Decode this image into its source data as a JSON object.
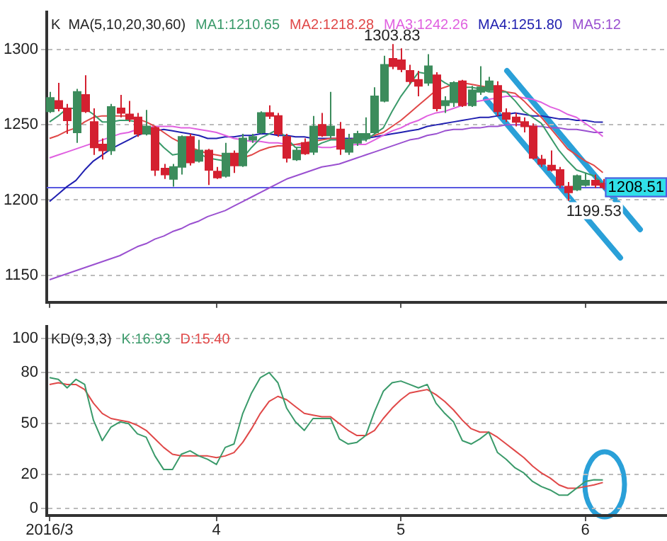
{
  "chart_data": [
    {
      "type": "candlestick",
      "legend_title": "K  MA(5,10,20,30,60)",
      "legend": "top",
      "tick_labels": "y",
      "grid": "y",
      "categories": [
        "2016/3",
        null,
        null,
        null,
        null,
        null,
        null,
        null,
        null,
        null,
        null,
        null,
        null,
        null,
        null,
        null,
        null,
        null,
        null,
        "4",
        null,
        null,
        null,
        null,
        null,
        null,
        null,
        null,
        null,
        null,
        null,
        null,
        null,
        null,
        null,
        null,
        null,
        null,
        null,
        null,
        "5",
        null,
        null,
        null,
        null,
        null,
        null,
        null,
        null,
        null,
        null,
        null,
        null,
        null,
        null,
        null,
        null,
        null,
        null,
        null,
        null,
        "6",
        null,
        null
      ],
      "ohlc": [
        [
          1259,
          1272,
          1258,
          1268
        ],
        [
          1266,
          1278,
          1259,
          1261
        ],
        [
          1261,
          1264,
          1244,
          1253
        ],
        [
          1245,
          1274,
          1238,
          1272
        ],
        [
          1270,
          1283,
          1258,
          1259
        ],
        [
          1252,
          1261,
          1230,
          1235
        ],
        [
          1237,
          1241,
          1227,
          1233
        ],
        [
          1233,
          1264,
          1230,
          1262
        ],
        [
          1261,
          1270,
          1255,
          1258
        ],
        [
          1257,
          1266,
          1252,
          1254
        ],
        [
          1255,
          1258,
          1242,
          1244
        ],
        [
          1244,
          1260,
          1243,
          1249
        ],
        [
          1248,
          1249,
          1216,
          1220
        ],
        [
          1221,
          1224,
          1214,
          1217
        ],
        [
          1214,
          1224,
          1209,
          1222
        ],
        [
          1222,
          1243,
          1217,
          1242
        ],
        [
          1242,
          1244,
          1223,
          1225
        ],
        [
          1226,
          1240,
          1225,
          1233
        ],
        [
          1233,
          1234,
          1210,
          1220
        ],
        [
          1219,
          1222,
          1214,
          1215
        ],
        [
          1216,
          1238,
          1215,
          1231
        ],
        [
          1231,
          1233,
          1218,
          1223
        ],
        [
          1223,
          1244,
          1222,
          1241
        ],
        [
          1240,
          1244,
          1238,
          1242
        ],
        [
          1245,
          1259,
          1244,
          1258
        ],
        [
          1258,
          1263,
          1254,
          1256
        ],
        [
          1256,
          1258,
          1242,
          1244
        ],
        [
          1242,
          1244,
          1225,
          1228
        ],
        [
          1227,
          1235,
          1226,
          1233
        ],
        [
          1238,
          1241,
          1230,
          1231
        ],
        [
          1232,
          1256,
          1230,
          1249
        ],
        [
          1250,
          1258,
          1242,
          1243
        ],
        [
          1243,
          1272,
          1241,
          1249
        ],
        [
          1247,
          1252,
          1230,
          1234
        ],
        [
          1232,
          1244,
          1230,
          1240
        ],
        [
          1238,
          1246,
          1236,
          1244
        ],
        [
          1241,
          1255,
          1239,
          1244
        ],
        [
          1245,
          1275,
          1244,
          1269
        ],
        [
          1266,
          1296,
          1265,
          1290
        ],
        [
          1294,
          1303.83,
          1287,
          1289
        ],
        [
          1293,
          1301,
          1285,
          1287
        ],
        [
          1286,
          1290,
          1277,
          1279
        ],
        [
          1280,
          1286,
          1269,
          1276
        ],
        [
          1278,
          1297,
          1276,
          1289
        ],
        [
          1283,
          1285,
          1259,
          1261
        ],
        [
          1263,
          1269,
          1258,
          1266
        ],
        [
          1265,
          1279,
          1262,
          1278
        ],
        [
          1279,
          1280,
          1262,
          1263
        ],
        [
          1263,
          1276,
          1262,
          1273
        ],
        [
          1272,
          1289,
          1270,
          1275
        ],
        [
          1273,
          1282,
          1272,
          1279
        ],
        [
          1276,
          1279,
          1256,
          1259
        ],
        [
          1258,
          1261,
          1252,
          1254
        ],
        [
          1255,
          1258,
          1249,
          1252
        ],
        [
          1252,
          1255,
          1245,
          1249
        ],
        [
          1249,
          1251,
          1227,
          1228
        ],
        [
          1227,
          1230,
          1222,
          1224
        ],
        [
          1223,
          1233,
          1219,
          1220
        ],
        [
          1220,
          1222,
          1208,
          1210
        ],
        [
          1209,
          1212,
          1199.53,
          1205
        ],
        [
          1207,
          1217,
          1206,
          1216
        ],
        [
          1210,
          1218,
          1209,
          1213
        ],
        [
          1213,
          1217,
          1208,
          1210
        ],
        [
          1211,
          1214,
          1207,
          1208.51
        ]
      ],
      "colors": [
        "#3c8c5c",
        "#d42030",
        "#d42030",
        "#3c8c5c",
        "#d42030",
        "#d42030",
        "#d42030",
        "#3c8c5c",
        "#d42030",
        "#d42030",
        "#d42030",
        "#3c8c5c",
        "#d42030",
        "#d42030",
        "#3c8c5c",
        "#3c8c5c",
        "#d42030",
        "#3c8c5c",
        "#d42030",
        "#d42030",
        "#3c8c5c",
        "#d42030",
        "#3c8c5c",
        "#3c8c5c",
        "#3c8c5c",
        "#d42030",
        "#d42030",
        "#d42030",
        "#3c8c5c",
        "#d42030",
        "#3c8c5c",
        "#d42030",
        "#3c8c5c",
        "#d42030",
        "#3c8c5c",
        "#3c8c5c",
        "#3c8c5c",
        "#3c8c5c",
        "#3c8c5c",
        "#d42030",
        "#d42030",
        "#d42030",
        "#d42030",
        "#3c8c5c",
        "#d42030",
        "#3c8c5c",
        "#3c8c5c",
        "#d42030",
        "#3c8c5c",
        "#3c8c5c",
        "#3c8c5c",
        "#d42030",
        "#d42030",
        "#d42030",
        "#d42030",
        "#d42030",
        "#d42030",
        "#d42030",
        "#d42030",
        "#d42030",
        "#3c8c5c",
        "#3c8c5c",
        "#d42030",
        "#d42030"
      ],
      "series": [
        {
          "name": "MA1:1210.65",
          "type": "line",
          "color": "#3a9a6a",
          "values": [
            1252,
            1256,
            1261,
            1261,
            1261,
            1257,
            1252,
            1252,
            1253,
            1253,
            1252,
            1247,
            1241,
            1235,
            1230,
            1231,
            1233,
            1231,
            1228,
            1227,
            1226,
            1227,
            1228,
            1235,
            1241,
            1244,
            1247,
            1241,
            1235,
            1235,
            1235,
            1238,
            1240,
            1240,
            1240,
            1240,
            1240,
            1244,
            1248,
            1259,
            1269,
            1277,
            1285,
            1284,
            1282,
            1278,
            1275,
            1275,
            1275,
            1274,
            1272,
            1272,
            1272,
            1266,
            1259,
            1255,
            1251,
            1242,
            1233,
            1226,
            1220,
            1218,
            1216,
            1210.65
          ]
        },
        {
          "name": "MA2:1218.28",
          "type": "line",
          "color": "#e04848",
          "values": [
            1241,
            1243,
            1246,
            1248,
            1252,
            1255,
            1256,
            1256,
            1256,
            1256,
            1254,
            1252,
            1249,
            1245,
            1241,
            1238,
            1235,
            1233,
            1231,
            1230,
            1229,
            1228,
            1228,
            1230,
            1233,
            1235,
            1236,
            1236,
            1237,
            1238,
            1239,
            1240,
            1241,
            1241,
            1240,
            null,
            null,
            1243,
            1245,
            1249,
            1253,
            1258,
            1263,
            1268,
            1273,
            1275,
            1277,
            1278,
            1277,
            1276,
            1275,
            1274,
            1272,
            1271,
            1266,
            1260,
            1255,
            1248,
            1241,
            1234,
            1230,
            1226,
            1223,
            1218.28
          ]
        },
        {
          "name": "MA3:1242.26",
          "type": "line",
          "color": "#e060e0",
          "values": [
            1228,
            1230,
            1232,
            1234,
            1236,
            1238,
            1240,
            1242,
            1244,
            1245,
            1247,
            1248,
            1249,
            1249,
            1249,
            1248,
            1248,
            1247,
            1246,
            1245,
            1243,
            1241,
            1240,
            1239,
            1239,
            1238,
            1238,
            1237,
            1237,
            1236,
            1236,
            1235,
            1235,
            1236,
            null,
            1237,
            1237,
            1240,
            1243,
            1246,
            1248,
            1251,
            1253,
            1256,
            1258,
            1259,
            1261,
            1263,
            1265,
            1266,
            1267,
            1268,
            1269,
            1269,
            1268,
            1267,
            1265,
            1262,
            1260,
            1257,
            1255,
            1251,
            1247,
            1242.26
          ]
        },
        {
          "name": "MA4:1251.80",
          "type": "line",
          "color": "#2020b0",
          "values": [
            1199,
            1204,
            1209,
            1213,
            1220,
            1226,
            1230,
            1234,
            1237,
            1240,
            1243,
            1245,
            null,
            1247,
            1246,
            1245,
            1244,
            1243,
            1241,
            1241,
            1242,
            1242,
            1243,
            1243,
            1244,
            1244,
            1243,
            1243,
            1242,
            1242,
            1241,
            1241,
            1241,
            1241,
            1241,
            1241,
            1241,
            1242,
            1243,
            1244,
            1245,
            1246,
            1247,
            1249,
            1250,
            1251,
            1252,
            1253,
            1254,
            1255,
            1255,
            1256,
            1257,
            1258,
            1257,
            1256,
            1256,
            1255,
            1254,
            1254,
            1253,
            1253,
            1252,
            1251.8
          ]
        },
        {
          "name": "MA5:12",
          "type": "line",
          "color": "#9a50d0",
          "values": [
            1147,
            1149,
            1151,
            1153,
            1155,
            1157,
            1159,
            1161,
            1163,
            1166,
            1169,
            1171,
            1174,
            1176,
            1179,
            1181,
            1184,
            1186,
            1189,
            1191,
            1193,
            1196,
            1199,
            1202,
            1205,
            1208,
            1211,
            1214,
            1216,
            1218,
            1220,
            1222,
            1223,
            1224,
            1226,
            1228,
            1230,
            1232,
            1234,
            1236,
            1238,
            1240,
            1241,
            1243,
            1244,
            1246,
            1247,
            1247,
            1248,
            1248,
            1249,
            1249,
            1250,
            1250,
            1250,
            1249,
            1249,
            1248,
            1248,
            1247,
            1247,
            1246,
            1245,
            1245
          ]
        }
      ],
      "ylim": [
        1132,
        1325
      ],
      "yticks": [
        1150,
        1200,
        1250,
        1300
      ],
      "ref_lines": [
        {
          "axis": "y",
          "value": 1208.51,
          "label": "1208.51",
          "color": "#5858e0"
        }
      ],
      "annotations": [
        "1303.83",
        "1199.53"
      ]
    },
    {
      "type": "line",
      "legend_title": "KD(9,3,3)",
      "legend": "top",
      "grid": "y",
      "categories": [
        "2016/3",
        null,
        null,
        null,
        null,
        null,
        null,
        null,
        null,
        null,
        null,
        null,
        null,
        null,
        null,
        null,
        null,
        null,
        null,
        "4",
        null,
        null,
        null,
        null,
        null,
        null,
        null,
        null,
        null,
        null,
        null,
        null,
        null,
        null,
        null,
        null,
        null,
        null,
        null,
        null,
        "5",
        null,
        null,
        null,
        null,
        null,
        null,
        null,
        null,
        null,
        null,
        null,
        null,
        null,
        null,
        null,
        null,
        null,
        null,
        null,
        null,
        "6",
        null,
        null
      ],
      "series": [
        {
          "name": "K:16.93",
          "color": "#3a9a6a",
          "values": [
            77,
            76,
            71,
            76,
            73,
            52,
            40,
            48,
            51,
            50,
            44,
            42,
            31,
            23,
            23,
            32,
            34,
            31,
            29,
            26,
            36,
            38,
            56,
            68,
            77,
            80,
            74,
            59,
            51,
            46,
            53,
            53,
            53,
            41,
            38,
            39,
            43,
            57,
            69,
            74,
            75,
            73,
            71,
            73,
            62,
            56,
            51,
            40,
            38,
            41,
            45,
            33,
            29,
            24,
            21,
            16,
            13,
            11,
            8,
            8,
            12,
            16,
            17,
            16.93
          ]
        },
        {
          "name": "D:15.40",
          "color": "#e04848",
          "values": [
            73,
            74,
            73,
            73,
            70,
            62,
            56,
            53,
            52,
            51,
            49,
            46,
            41,
            36,
            32,
            31,
            31,
            31,
            31,
            30,
            31,
            33,
            39,
            47,
            56,
            63,
            66,
            64,
            60,
            56,
            55,
            54,
            54,
            50,
            46,
            43,
            43,
            46,
            53,
            59,
            64,
            68,
            69,
            70,
            67,
            63,
            58,
            52,
            47,
            45,
            45,
            42,
            38,
            34,
            30,
            25,
            21,
            18,
            14,
            12,
            12,
            13,
            14,
            15.4
          ]
        }
      ],
      "ylim": [
        -4,
        107
      ],
      "yticks": [
        0,
        20,
        50,
        80,
        100
      ]
    }
  ]
}
